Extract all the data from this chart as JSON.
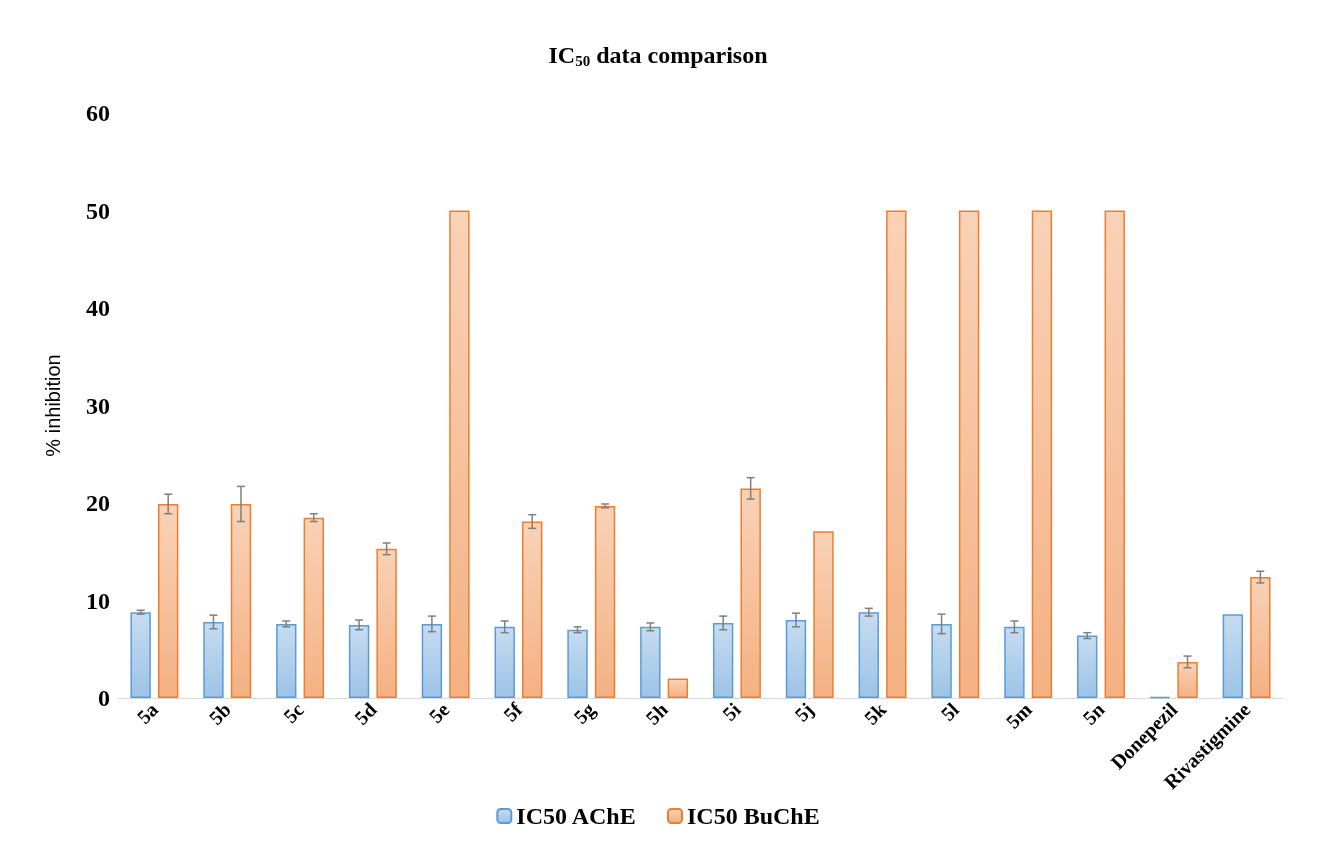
{
  "chart_data": {
    "type": "bar",
    "title": "IC$_{50}$ data comparison",
    "ylabel": "% inhibition",
    "categories": [
      "5a",
      "5b",
      "5c",
      "5d",
      "5e",
      "5f",
      "5g",
      "5h",
      "5i",
      "5j",
      "5k",
      "5l",
      "5m",
      "5n",
      "Donepezil",
      "Rivastigmine"
    ],
    "series": [
      {
        "name": "IC50 AChE",
        "color": "#5b9bd5",
        "values": [
          8.8,
          7.8,
          7.6,
          7.5,
          7.6,
          7.3,
          7.0,
          7.3,
          7.7,
          8.0,
          8.8,
          7.6,
          7.3,
          6.4,
          0.1,
          8.6
        ],
        "errors": [
          0.2,
          0.7,
          0.3,
          0.5,
          0.8,
          0.6,
          0.3,
          0.4,
          0.7,
          0.7,
          0.4,
          1.0,
          0.6,
          0.3,
          null,
          null
        ]
      },
      {
        "name": "IC50 BuChE",
        "color": "#ed7d31",
        "values": [
          19.9,
          19.9,
          18.5,
          15.3,
          50,
          18.1,
          19.7,
          2.0,
          21.5,
          17.1,
          50,
          50,
          50,
          50,
          3.7,
          12.4
        ],
        "errors": [
          1.0,
          1.8,
          0.4,
          0.6,
          null,
          0.7,
          0.2,
          null,
          1.1,
          null,
          null,
          null,
          null,
          null,
          0.6,
          0.6
        ]
      }
    ],
    "ylim": [
      0,
      60
    ],
    "yticks": [
      0,
      10,
      20,
      30,
      40,
      50,
      60
    ],
    "grid": false,
    "legend": "bottom"
  }
}
